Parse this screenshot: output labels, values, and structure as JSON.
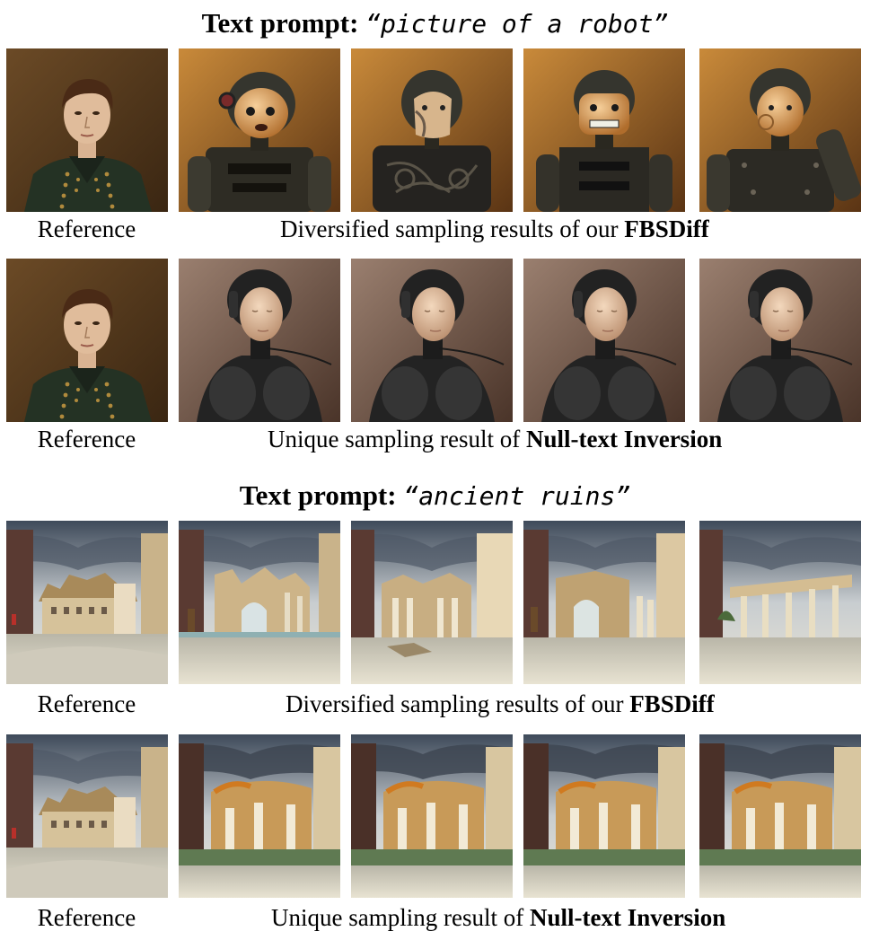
{
  "figure": {
    "sections": [
      {
        "prompt_lead": "Text prompt:",
        "prompt_text": "“picture of a robot”",
        "rows": [
          {
            "reference_caption": "Reference",
            "results_caption_plain": "Diversified sampling results of our ",
            "results_caption_bold": "FBSDiff"
          },
          {
            "reference_caption": "Reference",
            "results_caption_plain": "Unique sampling result of ",
            "results_caption_bold": "Null-text Inversion"
          }
        ]
      },
      {
        "prompt_lead": "Text prompt:",
        "prompt_text": "“ancient ruins”",
        "rows": [
          {
            "reference_caption": "Reference",
            "results_caption_plain": "Diversified sampling results of our ",
            "results_caption_bold": "FBSDiff"
          },
          {
            "reference_caption": "Reference",
            "results_caption_plain": "Unique sampling result of ",
            "results_caption_bold": "Null-text Inversion"
          }
        ]
      }
    ]
  }
}
